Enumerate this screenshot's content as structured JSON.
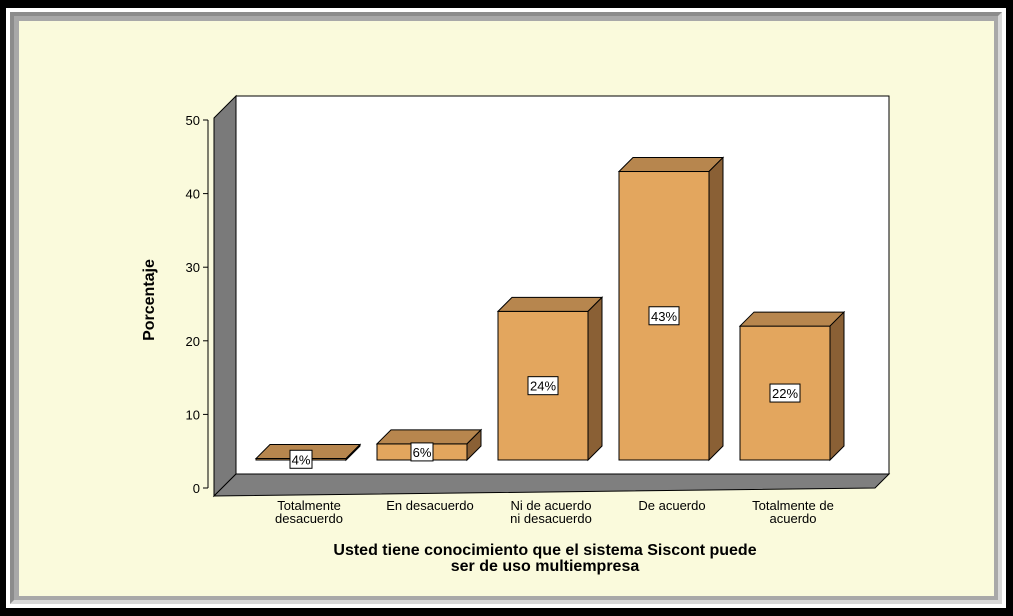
{
  "chart_data": {
    "type": "bar",
    "categories": [
      [
        "Totalmente",
        "desacuerdo"
      ],
      [
        "En desacuerdo"
      ],
      [
        "Ni de acuerdo",
        "ni desacuerdo"
      ],
      [
        "De acuerdo"
      ],
      [
        "Totalmente de",
        "acuerdo"
      ]
    ],
    "values": [
      4,
      6,
      24,
      43,
      22
    ],
    "data_labels": [
      "4%",
      "6%",
      "24%",
      "43%",
      "22%"
    ],
    "title": "",
    "xlabel": [
      "Usted tiene conocimiento que el sistema Siscont puede",
      "ser de uso multiempresa"
    ],
    "ylabel": "Porcentaje",
    "ylim": [
      0,
      50
    ],
    "yticks": [
      "0",
      "10",
      "20",
      "30",
      "40",
      "50"
    ],
    "grid": false,
    "colors": {
      "bar_front": "#e3a65e",
      "bar_top": "#b7864e",
      "bar_side": "#8a6035",
      "bar_stroke": "#000000",
      "floor": "#7f7f7f",
      "wall": "#7a7a7a",
      "plot_bg": "#ffffff",
      "background": "#fafadc"
    }
  }
}
